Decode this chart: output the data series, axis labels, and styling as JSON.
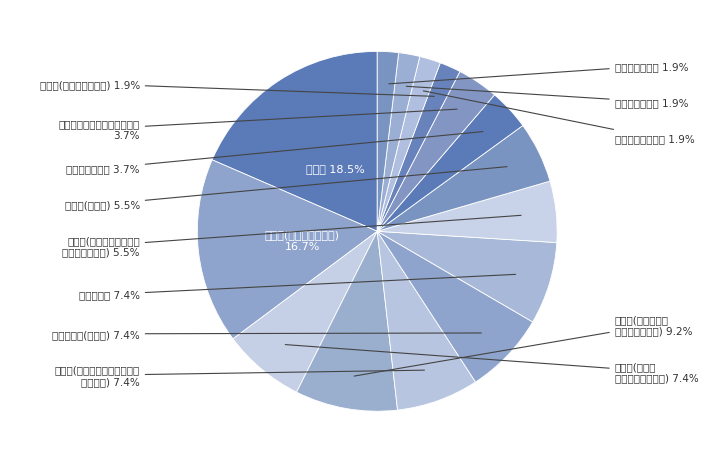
{
  "values": [
    18.5,
    16.7,
    7.4,
    9.2,
    7.4,
    7.4,
    7.4,
    5.5,
    5.5,
    3.7,
    3.7,
    1.9,
    1.9,
    1.9,
    1.9
  ],
  "colors": [
    "#5b7ab8",
    "#8fa4cc",
    "#c5cfe6",
    "#9aaece",
    "#b8c5e0",
    "#8fa4cc",
    "#a8b8d8",
    "#c8d2e8",
    "#7a94c1",
    "#5b7ab8",
    "#8295c3",
    "#6882bb",
    "#b0bee0",
    "#9bafd4",
    "#7a94c1"
  ],
  "inside_labels": [
    [
      "建設業 18.5%",
      0.38,
      0.0
    ],
    [
      "製造業(輸送用機械器具)\n16.7%",
      0.4,
      -0.18
    ]
  ],
  "annotations_left": [
    [
      "製造業(印刷・同関連業) 1.9%",
      11
    ],
    [
      "電気・ガス・熱供給・水道業\n3.7%",
      10
    ],
    [
      "運輸業、郵便業 3.7%",
      9
    ],
    [
      "製造業(その他) 5.5%",
      8
    ],
    [
      "製造業(はん用・生産用・\n業務用機械器具) 5.5%",
      7
    ],
    [
      "情報通信業 7.4%",
      6
    ],
    [
      "サービス業(その他) 7.4%",
      5
    ],
    [
      "製造業(電子部品・デバイス・\n電子回路) 7.4%",
      4
    ]
  ],
  "annotations_right": [
    [
      "専門サービス業 1.9%",
      14
    ],
    [
      "卸売業、小売業 1.9%",
      13
    ],
    [
      "教育、学習支援業 1.9%",
      12
    ],
    [
      "製造業(化学工業、\n石油・石炭製品) 9.2%",
      3
    ],
    [
      "製造業(電気・\n情報通信機械器具) 7.4%",
      2
    ]
  ],
  "background_color": "#ffffff",
  "text_color": "#333333",
  "start_angle": 90
}
